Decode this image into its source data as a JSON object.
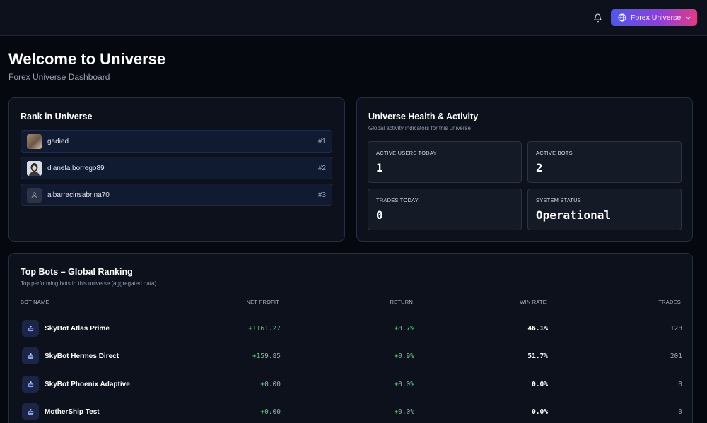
{
  "header": {
    "universe_selector": "Forex Universe"
  },
  "page": {
    "title": "Welcome to Universe",
    "subtitle": "Forex Universe Dashboard"
  },
  "rank_card": {
    "title": "Rank in Universe",
    "items": [
      {
        "name": "gadied",
        "rank": "#1"
      },
      {
        "name": "dianela.borrego89",
        "rank": "#2"
      },
      {
        "name": "albarracinsabrina70",
        "rank": "#3"
      }
    ]
  },
  "health_card": {
    "title": "Universe Health & Activity",
    "subtitle": "Global activity indicators for this universe",
    "stats": [
      {
        "label": "ACTIVE USERS TODAY",
        "value": "1"
      },
      {
        "label": "ACTIVE BOTS",
        "value": "2"
      },
      {
        "label": "TRADES TODAY",
        "value": "0"
      },
      {
        "label": "SYSTEM STATUS",
        "value": "Operational"
      }
    ]
  },
  "bots_card": {
    "title": "Top Bots – Global Ranking",
    "subtitle": "Top performing bots in this universe (aggregated data)",
    "columns": {
      "name": "BOT NAME",
      "profit": "NET PROFIT",
      "return": "RETURN",
      "win_rate": "WIN RATE",
      "trades": "TRADES"
    },
    "rows": [
      {
        "name": "SkyBot Atlas Prime",
        "profit": "+1161.27",
        "return": "+8.7%",
        "win_rate": "46.1%",
        "trades": "128"
      },
      {
        "name": "SkyBot Hermes Direct",
        "profit": "+159.85",
        "return": "+0.9%",
        "win_rate": "51.7%",
        "trades": "201"
      },
      {
        "name": "SkyBot Phoenix Adaptive",
        "profit": "+0.00",
        "return": "+0.0%",
        "win_rate": "0.0%",
        "trades": "0"
      },
      {
        "name": "MotherShip Test",
        "profit": "+0.00",
        "return": "+0.0%",
        "win_rate": "0.0%",
        "trades": "0"
      }
    ]
  },
  "colors": {
    "positive": "#4ade80",
    "accent_start": "#4f56f0",
    "accent_end": "#e23a86"
  },
  "icons": [
    "bell-icon",
    "globe-icon",
    "chevron-down-icon",
    "user-icon",
    "robot-icon"
  ]
}
